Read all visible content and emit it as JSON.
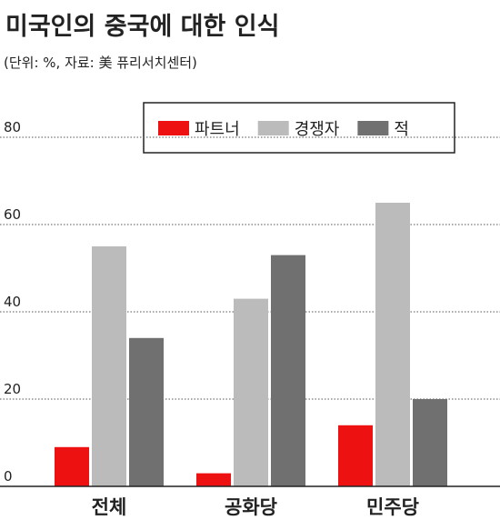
{
  "chart_data": {
    "type": "bar",
    "title": "미국인의 중국에 대한 인식",
    "subtitle": "(단위: %, 자료: 美 퓨리서치센터)",
    "categories": [
      "전체",
      "공화당",
      "민주당"
    ],
    "series": [
      {
        "name": "파트너",
        "color": "#ee1111",
        "values": [
          9,
          3,
          14
        ]
      },
      {
        "name": "경쟁자",
        "color": "#bbbbbb",
        "values": [
          55,
          43,
          65
        ]
      },
      {
        "name": "적",
        "color": "#707070",
        "values": [
          34,
          53,
          20
        ]
      }
    ],
    "ylim": [
      0,
      80
    ],
    "yticks": [
      0,
      20,
      40,
      60,
      80
    ],
    "grid": true
  }
}
